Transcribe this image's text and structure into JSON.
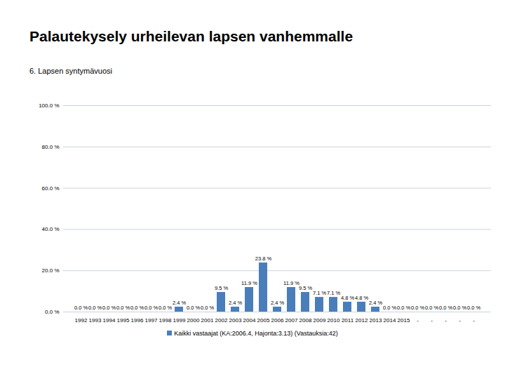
{
  "chart_data": {
    "type": "bar",
    "title": "Palautekysely urheilevan lapsen vanhemmalle",
    "subtitle": "6. Lapsen syntymävuosi",
    "categories": [
      "1992",
      "1993",
      "1994",
      "1995",
      "1996",
      "1997",
      "1998",
      "1999",
      "2000",
      "2001",
      "2002",
      "2003",
      "2004",
      "2005",
      "2006",
      "2007",
      "2008",
      "2009",
      "2010",
      "2011",
      "2012",
      "2013",
      "2014",
      "2015",
      "-",
      "-",
      "-",
      "-",
      "-"
    ],
    "series": [
      {
        "name": "Kaikki vastaajat (KA:2006.4, Hajonta:3.13) (Vastauksia:42)",
        "color": "#4a7ebb",
        "values": [
          0,
          0,
          0,
          0,
          0,
          0,
          0,
          2.4,
          0,
          0,
          9.5,
          2.4,
          11.9,
          23.8,
          2.4,
          11.9,
          9.5,
          7.1,
          7.1,
          4.8,
          4.8,
          2.4,
          0,
          0,
          0,
          0,
          0,
          0,
          0
        ],
        "value_labels": [
          "0.0 %",
          "0.0 %",
          "0.0 %",
          "0.0 %",
          "0.0 %",
          "0.0 %",
          "0.0 %",
          "2.4 %",
          "0.0 %",
          "0.0 %",
          "9.5 %",
          "2.4 %",
          "11.9 %",
          "23.8 %",
          "2.4 %",
          "11.9 %",
          "9.5 %",
          "7.1 %",
          "7.1 %",
          "4.8 %",
          "4.8 %",
          "2.4 %",
          "0.0 %",
          "0.0 %",
          "0.0 %",
          "0.0 %",
          "0.0 %",
          "0.0 %",
          "0.0 %"
        ]
      }
    ],
    "ylim": [
      0,
      100
    ],
    "yticks": [
      {
        "value": 0,
        "label": "0.0 %"
      },
      {
        "value": 20,
        "label": "20.0 %"
      },
      {
        "value": 40,
        "label": "40.0 %"
      },
      {
        "value": 60,
        "label": "60.0 %"
      },
      {
        "value": 80,
        "label": "80.0 %"
      },
      {
        "value": 100,
        "label": "100.0 %"
      }
    ],
    "grid": true,
    "data_labels": true,
    "legend": "bottom"
  }
}
